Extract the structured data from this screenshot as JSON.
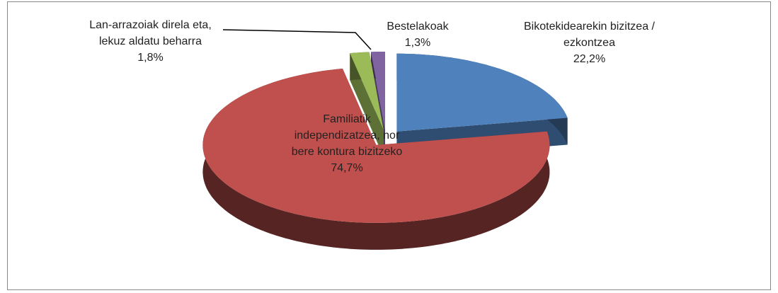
{
  "chart_data": {
    "type": "pie",
    "categories": [
      "Bikotekidearekin bizitzea / ezkontzea",
      "Familiatik independizatzea, nor bere kontura bizitzeko",
      "Lan-arrazoiak direla eta, lekuz aldatu beharra",
      "Bestelakoak"
    ],
    "values": [
      22.2,
      74.7,
      1.8,
      1.3
    ],
    "value_labels": [
      "22,2%",
      "74,7%",
      "1,8%",
      "1,3%"
    ],
    "colors": [
      "#4f81bd",
      "#c0504d",
      "#9bbb59",
      "#8064a2"
    ]
  }
}
